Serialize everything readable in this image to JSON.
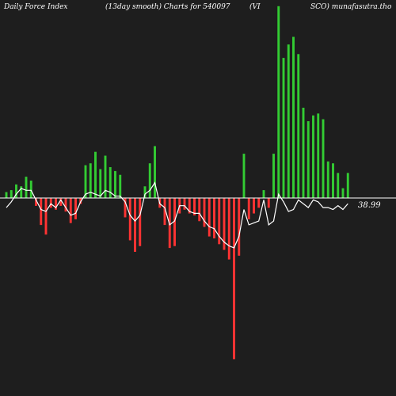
{
  "header": {
    "segments": [
      "Daily Force  Index",
      "(13day smooth) Charts for 540097",
      "(VI",
      "SCO) munafasutra.tho"
    ]
  },
  "colors": {
    "background": "#1e1e1e",
    "positive": "#33cc33",
    "negative": "#ff3333",
    "line": "#ffffff",
    "zero_line": "#ffffff"
  },
  "chart_data": {
    "type": "bar",
    "zero_line": true,
    "grid": false,
    "last_value_label": "38.99",
    "bars": [
      3,
      4,
      7,
      6,
      11,
      9,
      -4,
      -14,
      -19,
      -5,
      -6,
      -4,
      -7,
      -13,
      -11,
      -3,
      17,
      18,
      24,
      15,
      22,
      16,
      14,
      12,
      -10,
      -22,
      -28,
      -25,
      6,
      18,
      27,
      -5,
      -14,
      -26,
      -25,
      -8,
      -6,
      -8,
      -9,
      -12,
      -15,
      -20,
      -21,
      -24,
      -27,
      -32,
      -84,
      -30,
      23,
      -11,
      -8,
      -5,
      4,
      -5,
      23,
      100,
      73,
      80,
      84,
      75,
      47,
      40,
      43,
      44,
      41,
      19,
      18,
      13,
      5,
      13
    ],
    "line": [
      -5,
      -2,
      2,
      5,
      4,
      4,
      -1,
      -6,
      -7,
      -3,
      -5,
      -1,
      -5,
      -9,
      -8,
      -2,
      2,
      3,
      2,
      1,
      4,
      3,
      1,
      1,
      -2,
      -9,
      -12,
      -9,
      2,
      4,
      8,
      -3,
      -5,
      -14,
      -12,
      -4,
      -4,
      -7,
      -8,
      -8,
      -12,
      -15,
      -16,
      -20,
      -23,
      -25,
      -26,
      -20,
      -6,
      -14,
      -13,
      -12,
      -1,
      -14,
      -12,
      2,
      -2,
      -7,
      -6,
      -1,
      -3,
      -5,
      -1,
      -2,
      -5,
      -5,
      -6,
      -4,
      -6,
      -3
    ]
  }
}
